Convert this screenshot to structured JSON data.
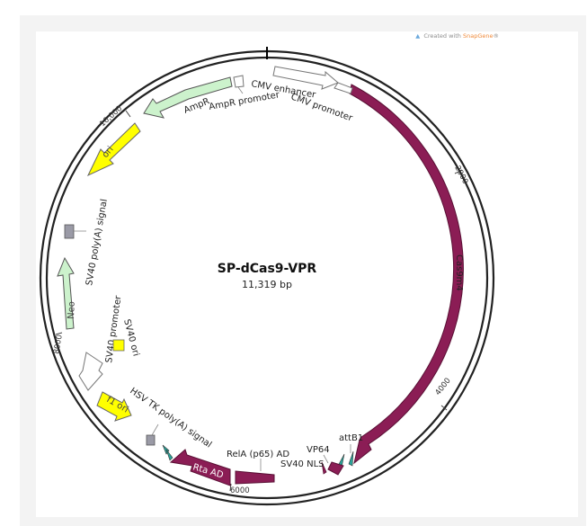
{
  "credit": {
    "prefix": "Created with",
    "brand": "SnapGene",
    "mark": "®"
  },
  "plasmid": {
    "name": "SP-dCas9-VPR",
    "size": "11,319 bp"
  },
  "ticks": [
    "2000",
    "4000",
    "6000",
    "8000",
    "10,000"
  ],
  "features": {
    "cmv_enhancer": "CMV enhancer",
    "cmv_promoter": "CMV promoter",
    "cas9": "Cas9m4",
    "attb1": "attB1",
    "vp64": "VP64",
    "sv40_nls": "SV40 NLS",
    "rela": "RelA (p65) AD",
    "rta": "Rta AD",
    "hsv_tk": "HSV TK poly(A) signal",
    "f1": "f1 ori",
    "sv40_promoter": "SV40 promoter",
    "sv40_ori": "SV40 ori",
    "neo": "Neo",
    "sv40_polya": "SV40 poly(A) signal",
    "ori": "ori",
    "ampr": "AmpR",
    "ampr_promoter": "AmpR promoter"
  },
  "colors": {
    "cas9": "#8b1d55",
    "rta": "#8b1d55",
    "ori": "#ffff00",
    "resistance": "#ccf2cc",
    "promoter": "#ffffff",
    "teal": "#2aa39a",
    "grey": "#9a9aa6"
  }
}
